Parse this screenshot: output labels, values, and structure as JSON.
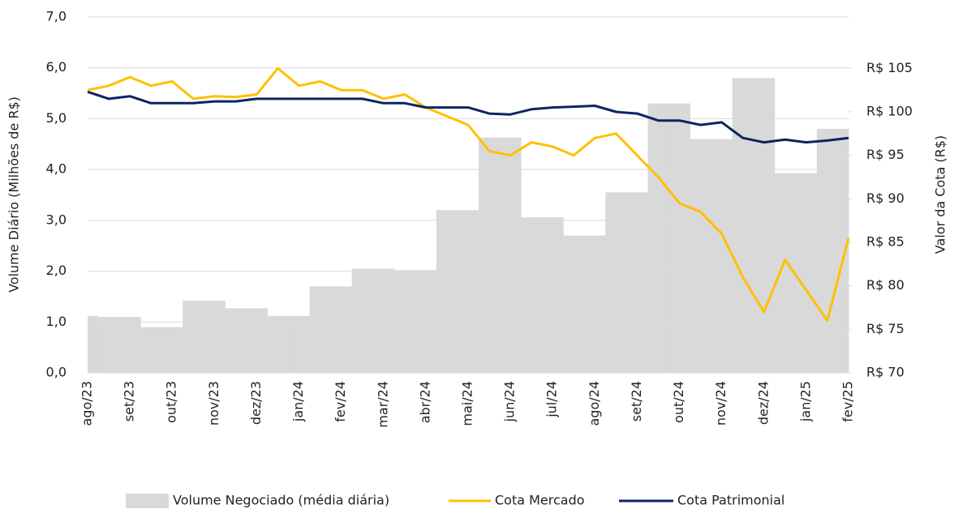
{
  "chart_data": {
    "type": "combo",
    "y_label": "Volume Diário (Milhões de R$)",
    "y2_label": "Valor da Cota (R$)",
    "categories": [
      "ago/23",
      null,
      "set/23",
      null,
      "out/23",
      null,
      "nov/23",
      null,
      "dez/23",
      null,
      "jan/24",
      null,
      "fev/24",
      null,
      "mar/24",
      null,
      "abr/24",
      null,
      "mai/24",
      null,
      "jun/24",
      null,
      "jul/24",
      null,
      "ago/24",
      null,
      "set/24",
      null,
      "out/24",
      null,
      "nov/24",
      null,
      "dez/24",
      null,
      "jan/25",
      null,
      "fev/25"
    ],
    "ylim": [
      0,
      7
    ],
    "yticks": [
      {
        "value": 0,
        "label": "0,0"
      },
      {
        "value": 1,
        "label": "1,0"
      },
      {
        "value": 2,
        "label": "2,0"
      },
      {
        "value": 3,
        "label": "3,0"
      },
      {
        "value": 4,
        "label": "4,0"
      },
      {
        "value": 5,
        "label": "5,0"
      },
      {
        "value": 6,
        "label": "6,0"
      },
      {
        "value": 7,
        "label": "7,0"
      }
    ],
    "y2lim": [
      70,
      110.9
    ],
    "y2ticks": [
      {
        "value": 70,
        "label": "R$ 70"
      },
      {
        "value": 75,
        "label": "R$ 75"
      },
      {
        "value": 80,
        "label": "R$ 80"
      },
      {
        "value": 85,
        "label": "R$ 85"
      },
      {
        "value": 90,
        "label": "R$ 90"
      },
      {
        "value": 95,
        "label": "R$ 95"
      },
      {
        "value": 100,
        "label": "R$ 100"
      },
      {
        "value": 105,
        "label": "R$ 105"
      }
    ],
    "grid": true,
    "series": [
      {
        "name": "Volume Negociado (média diária)",
        "type": "area",
        "color": "#d9d9d9",
        "values": [
          1.12,
          1.1,
          1.1,
          0.9,
          0.9,
          1.42,
          1.42,
          1.27,
          1.27,
          1.12,
          1.12,
          1.7,
          1.7,
          2.05,
          2.05,
          2.02,
          2.02,
          3.2,
          3.2,
          4.63,
          4.63,
          3.06,
          3.06,
          2.7,
          2.7,
          3.55,
          3.55,
          5.3,
          5.3,
          4.6,
          4.6,
          5.8,
          5.8,
          3.93,
          3.93,
          4.8,
          4.8
        ]
      },
      {
        "name": "Cota Mercado",
        "type": "line",
        "axis": "y2",
        "color": "#ffc000",
        "values": [
          102.5,
          103,
          104,
          103,
          103.5,
          101.5,
          101.8,
          101.7,
          102,
          105,
          103,
          103.5,
          102.5,
          102.5,
          101.5,
          102,
          100.5,
          99.5,
          98.5,
          95.5,
          95,
          96.5,
          96,
          95,
          97,
          97.5,
          95,
          92.5,
          89.5,
          88.5,
          86,
          81,
          77,
          83,
          79.5,
          76,
          85.5
        ]
      },
      {
        "name": "Cota Patrimonial",
        "type": "line",
        "axis": "y2",
        "color": "#0c2461",
        "values": [
          102.3,
          101.5,
          101.8,
          101,
          101,
          101,
          101.2,
          101.2,
          101.5,
          101.5,
          101.5,
          101.5,
          101.5,
          101.5,
          101,
          101,
          100.5,
          100.5,
          100.5,
          99.8,
          99.7,
          100.3,
          100.5,
          100.6,
          100.7,
          100,
          99.8,
          99,
          99,
          98.5,
          98.8,
          97,
          96.5,
          96.8,
          96.5,
          96.7,
          97
        ]
      }
    ]
  }
}
